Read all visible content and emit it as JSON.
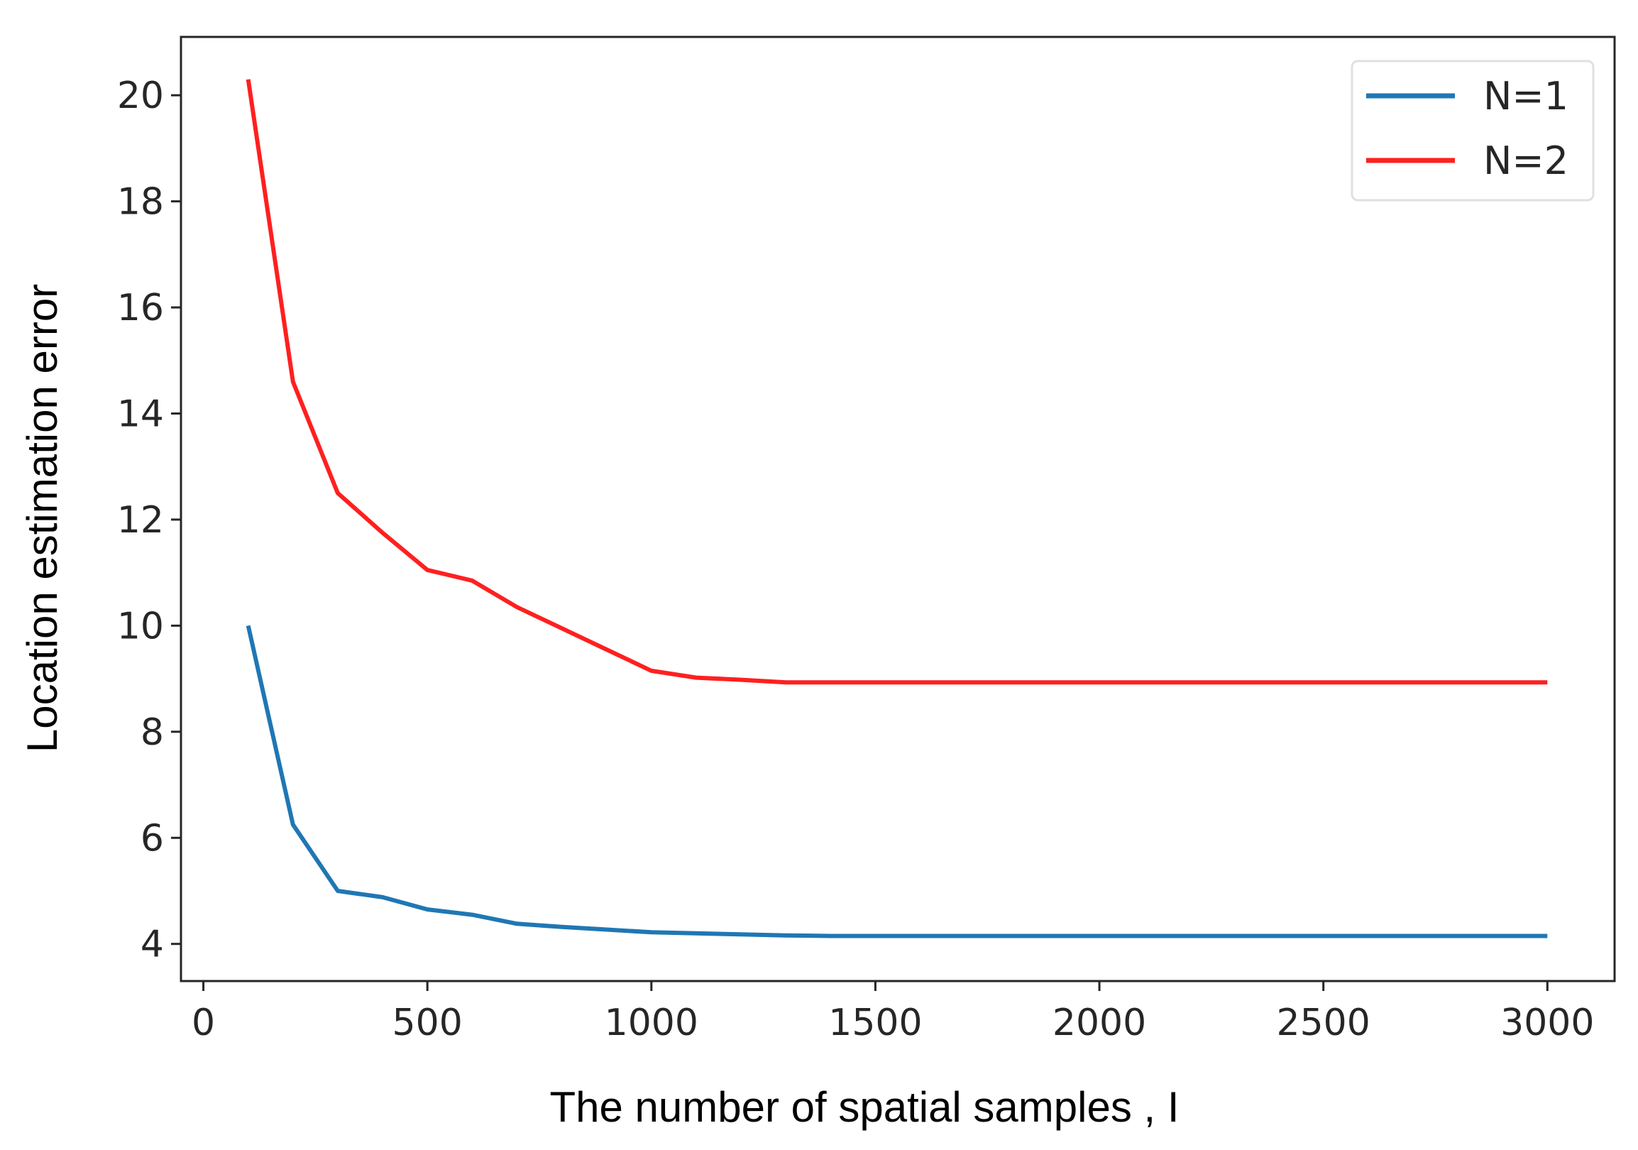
{
  "chart_data": {
    "type": "line",
    "title": "",
    "xlabel": "The number of spatial samples , I",
    "ylabel": "Location estimation error",
    "xlim": [
      -50,
      3150
    ],
    "ylim": [
      3.3,
      21.1
    ],
    "xticks": [
      0,
      500,
      1000,
      1500,
      2000,
      2500,
      3000
    ],
    "yticks": [
      4,
      6,
      8,
      10,
      12,
      14,
      16,
      18,
      20
    ],
    "grid": false,
    "legend_position": "top-right",
    "series": [
      {
        "name": "N=1",
        "color": "#1f77b4",
        "x": [
          100,
          200,
          300,
          400,
          500,
          600,
          700,
          800,
          900,
          1000,
          1100,
          1200,
          1300,
          1400,
          1500,
          2000,
          2500,
          3000
        ],
        "y": [
          10.0,
          6.25,
          5.0,
          4.88,
          4.65,
          4.55,
          4.38,
          4.32,
          4.27,
          4.22,
          4.2,
          4.18,
          4.16,
          4.15,
          4.15,
          4.15,
          4.15,
          4.15
        ]
      },
      {
        "name": "N=2",
        "color": "#ff2020",
        "x": [
          100,
          200,
          300,
          400,
          500,
          600,
          700,
          800,
          900,
          1000,
          1100,
          1200,
          1300,
          1400,
          1500,
          2000,
          2500,
          3000
        ],
        "y": [
          20.3,
          14.6,
          12.5,
          11.75,
          11.05,
          10.85,
          10.35,
          9.95,
          9.55,
          9.15,
          9.02,
          8.98,
          8.93,
          8.93,
          8.93,
          8.93,
          8.93,
          8.93
        ]
      }
    ]
  }
}
